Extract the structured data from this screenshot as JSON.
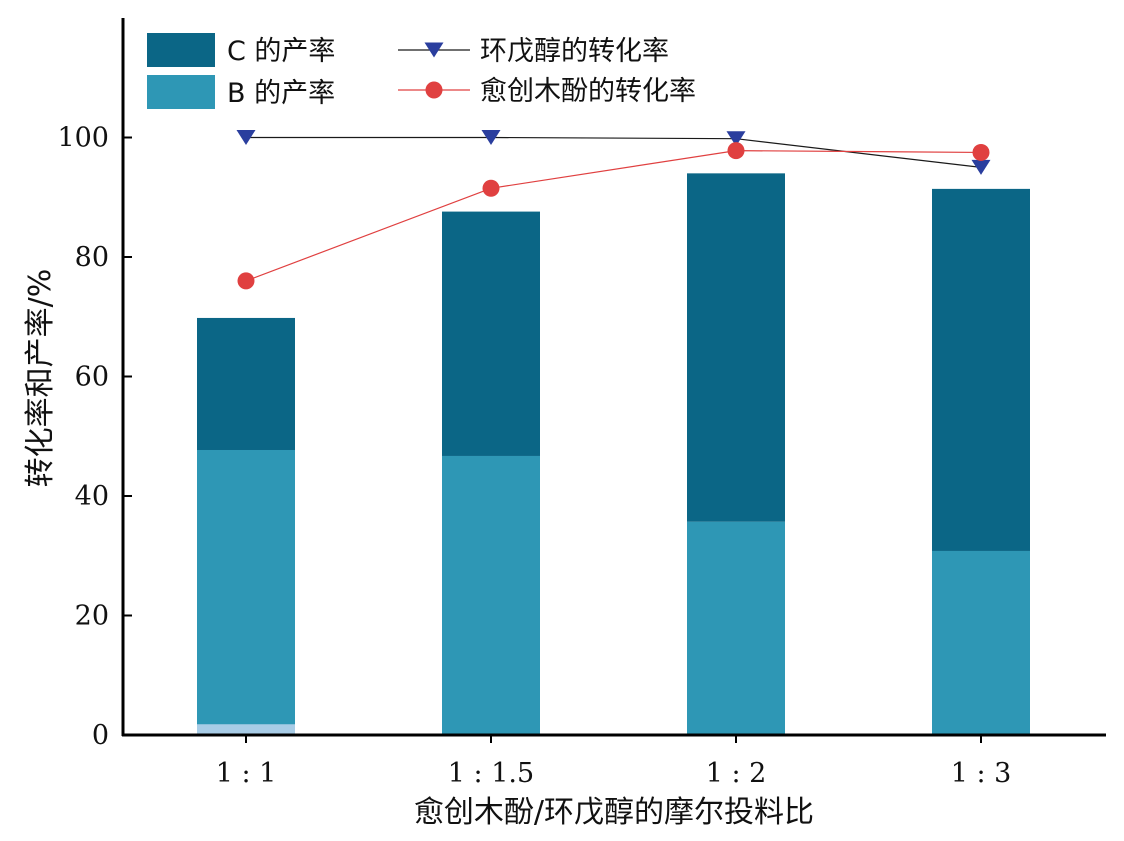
{
  "chart_data": {
    "type": "bar",
    "categories": [
      "1 : 1",
      "1 : 1.5",
      "1 : 2",
      "1 : 3"
    ],
    "stacked_bars": [
      {
        "name": "B 的产率",
        "values": [
          47.7,
          46.7,
          35.7,
          30.8
        ],
        "color": "#2e97b5"
      },
      {
        "name": "C 的产率",
        "values": [
          22.1,
          40.9,
          58.3,
          60.6
        ],
        "color": "#0b6686"
      }
    ],
    "minor_segment": {
      "values": [
        1.8,
        0,
        0,
        0
      ],
      "color": "#a8cce6"
    },
    "lines": [
      {
        "name": "环戊醇的转化率",
        "values": [
          100.0,
          100.0,
          99.8,
          95.0
        ],
        "marker": "triangle-down",
        "color": "#2a3e9e",
        "line_color": "#1a1a1a"
      },
      {
        "name": "愈创木酚的转化率",
        "values": [
          76.0,
          91.5,
          97.8,
          97.5
        ],
        "marker": "circle",
        "color": "#e04040",
        "line_color": "#e04040"
      }
    ],
    "xlabel": "愈创木酚/环戊醇的摩尔投料比",
    "ylabel": "转化率和产率/%",
    "ylim": [
      0,
      120
    ],
    "yticks": [
      0,
      20,
      40,
      60,
      80,
      100
    ],
    "grid": false,
    "legend_position": "top-left"
  }
}
